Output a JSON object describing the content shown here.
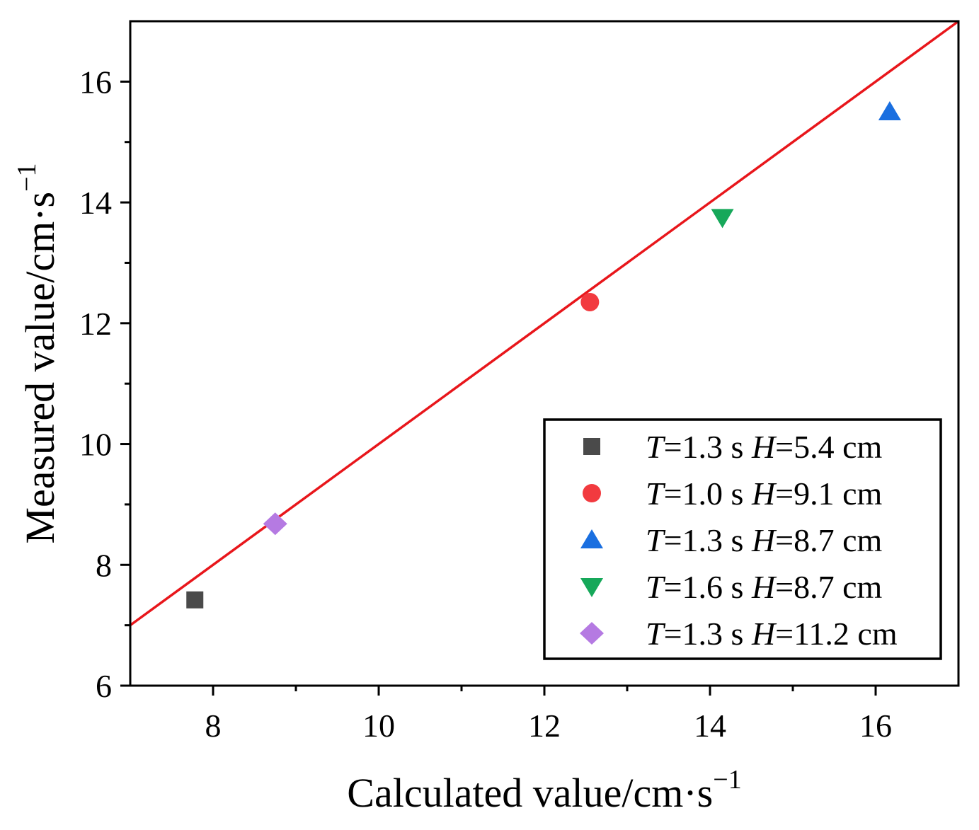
{
  "chart_data": {
    "type": "scatter",
    "title": "",
    "xlabel": "Calculated value/cm·s",
    "xlabel_sup": "−1",
    "ylabel": "Measured value/cm·s",
    "ylabel_sup": "−1",
    "xlim": [
      7,
      17
    ],
    "ylim": [
      6,
      17
    ],
    "x_ticks": [
      8,
      10,
      12,
      14,
      16
    ],
    "y_ticks": [
      6,
      8,
      10,
      12,
      14,
      16
    ],
    "x_tick_labels": [
      "8",
      "10",
      "12",
      "14",
      "16"
    ],
    "y_tick_labels": [
      "6",
      "8",
      "10",
      "12",
      "14",
      "16"
    ],
    "grid": false,
    "legend_position": "bottom-right",
    "reference_line": {
      "name": "y = x",
      "x": [
        7,
        17
      ],
      "y": [
        7,
        17
      ],
      "color": "#e8161b"
    },
    "series": [
      {
        "name": "T=1.3 s H=5.4 cm",
        "T": "1.3",
        "H": "5.4",
        "marker": "square",
        "color": "#4a4a4a",
        "points": [
          {
            "x": 7.78,
            "y": 7.42
          }
        ]
      },
      {
        "name": "T=1.0 s H=9.1 cm",
        "T": "1.0",
        "H": "9.1",
        "marker": "circle",
        "color": "#f23a3f",
        "points": [
          {
            "x": 12.55,
            "y": 12.35
          }
        ]
      },
      {
        "name": "T=1.3 s H=8.7 cm",
        "T": "1.3",
        "H": "8.7",
        "marker": "triangle-up",
        "color": "#1a6fe0",
        "points": [
          {
            "x": 16.17,
            "y": 15.5
          }
        ]
      },
      {
        "name": "T=1.6 s H=8.7 cm",
        "T": "1.6",
        "H": "8.7",
        "marker": "triangle-down",
        "color": "#16a85a",
        "points": [
          {
            "x": 14.15,
            "y": 13.75
          }
        ]
      },
      {
        "name": "T=1.3 s H=11.2 cm",
        "T": "1.3",
        "H": "11.2",
        "marker": "diamond",
        "color": "#b57ae2",
        "points": [
          {
            "x": 8.75,
            "y": 8.68
          }
        ]
      }
    ]
  }
}
